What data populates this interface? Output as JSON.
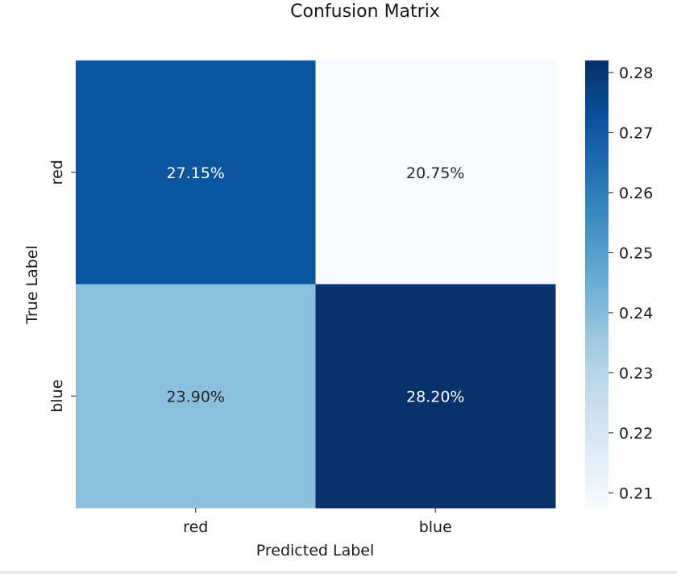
{
  "chart_data": {
    "type": "heatmap",
    "title": "Confusion Matrix",
    "xlabel": "Predicted Label",
    "ylabel": "True Label",
    "x_categories": [
      "red",
      "blue"
    ],
    "y_categories": [
      "red",
      "blue"
    ],
    "values": [
      [
        0.2715,
        0.2075
      ],
      [
        0.239,
        0.282
      ]
    ],
    "cell_labels": [
      [
        "27.15%",
        "20.75%"
      ],
      [
        "23.90%",
        "28.20%"
      ]
    ],
    "colorbar": {
      "min": 0.2075,
      "max": 0.282,
      "ticks": [
        0.21,
        0.22,
        0.23,
        0.24,
        0.25,
        0.26,
        0.27,
        0.28
      ],
      "tick_labels": [
        "0.21",
        "0.22",
        "0.23",
        "0.24",
        "0.25",
        "0.26",
        "0.27",
        "0.28"
      ]
    },
    "colormap": "Blues",
    "colormap_stops": [
      "#f7fbff",
      "#deebf7",
      "#c6dbef",
      "#9ecae1",
      "#6baed6",
      "#4292c6",
      "#2171b5",
      "#08519c",
      "#08306b"
    ],
    "annotation_colors": {
      "light": "#ffffff",
      "dark": "#262626"
    }
  }
}
